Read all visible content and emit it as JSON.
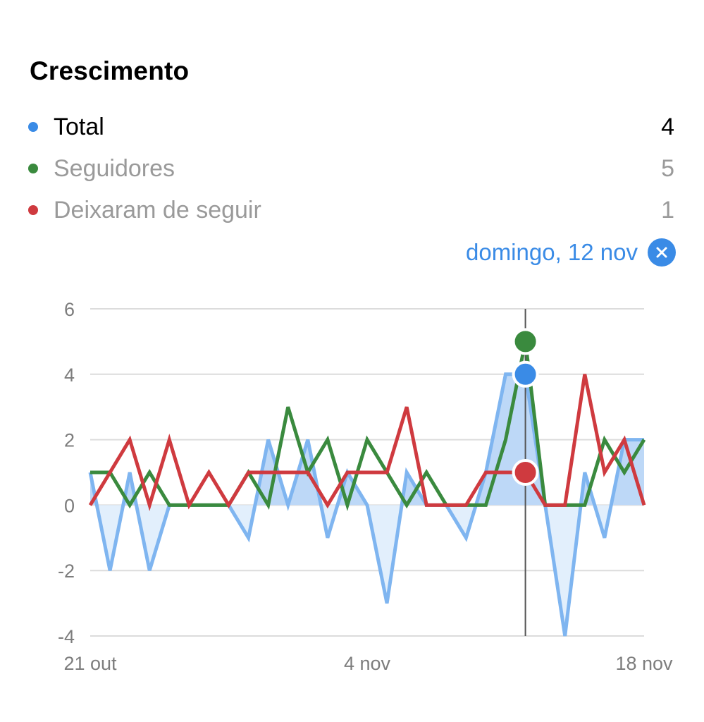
{
  "title": "Crescimento",
  "legend": [
    {
      "label": "Total",
      "value": "4",
      "color": "#3a8be6",
      "active": true
    },
    {
      "label": "Seguidores",
      "value": "5",
      "color": "#3a8a3e",
      "active": false
    },
    {
      "label": "Deixaram de seguir",
      "value": "1",
      "color": "#cf3a3f",
      "active": false
    }
  ],
  "selected_date": "domingo, 12 nov",
  "close_icon": "close-icon",
  "chart_data": {
    "type": "line",
    "x": [
      "21 out",
      "22 out",
      "23 out",
      "24 out",
      "25 out",
      "26 out",
      "27 out",
      "28 out",
      "29 out",
      "30 out",
      "31 out",
      "1 nov",
      "2 nov",
      "3 nov",
      "4 nov",
      "5 nov",
      "6 nov",
      "7 nov",
      "8 nov",
      "9 nov",
      "10 nov",
      "11 nov",
      "12 nov",
      "13 nov",
      "14 nov",
      "15 nov",
      "16 nov",
      "17 nov",
      "18 nov"
    ],
    "x_tick_labels": [
      "21 out",
      "4 nov",
      "18 nov"
    ],
    "x_tick_index": [
      0,
      14,
      28
    ],
    "y_ticks": [
      6,
      4,
      2,
      0,
      -2,
      -4
    ],
    "ylim": [
      -4,
      6
    ],
    "grid": true,
    "selected_index": 22,
    "series": [
      {
        "name": "Total",
        "color": "#3a8be6",
        "values": [
          1,
          -2,
          1,
          -2,
          0,
          0,
          0,
          0,
          -1,
          2,
          0,
          2,
          -1,
          1,
          0,
          -3,
          1,
          0,
          0,
          -1,
          1,
          4,
          4,
          0,
          -4,
          1,
          -1,
          2,
          2
        ],
        "area": true
      },
      {
        "name": "Seguidores",
        "color": "#3a8a3e",
        "values": [
          1,
          1,
          0,
          1,
          0,
          0,
          0,
          0,
          1,
          0,
          3,
          1,
          2,
          0,
          2,
          1,
          0,
          1,
          0,
          0,
          0,
          2,
          5,
          0,
          0,
          0,
          2,
          1,
          2
        ]
      },
      {
        "name": "Deixaram de seguir",
        "color": "#cf3a3f",
        "values": [
          0,
          1,
          2,
          0,
          2,
          0,
          1,
          0,
          1,
          1,
          1,
          1,
          0,
          1,
          1,
          1,
          3,
          0,
          0,
          0,
          1,
          1,
          1,
          0,
          0,
          4,
          1,
          2,
          0
        ]
      }
    ]
  }
}
